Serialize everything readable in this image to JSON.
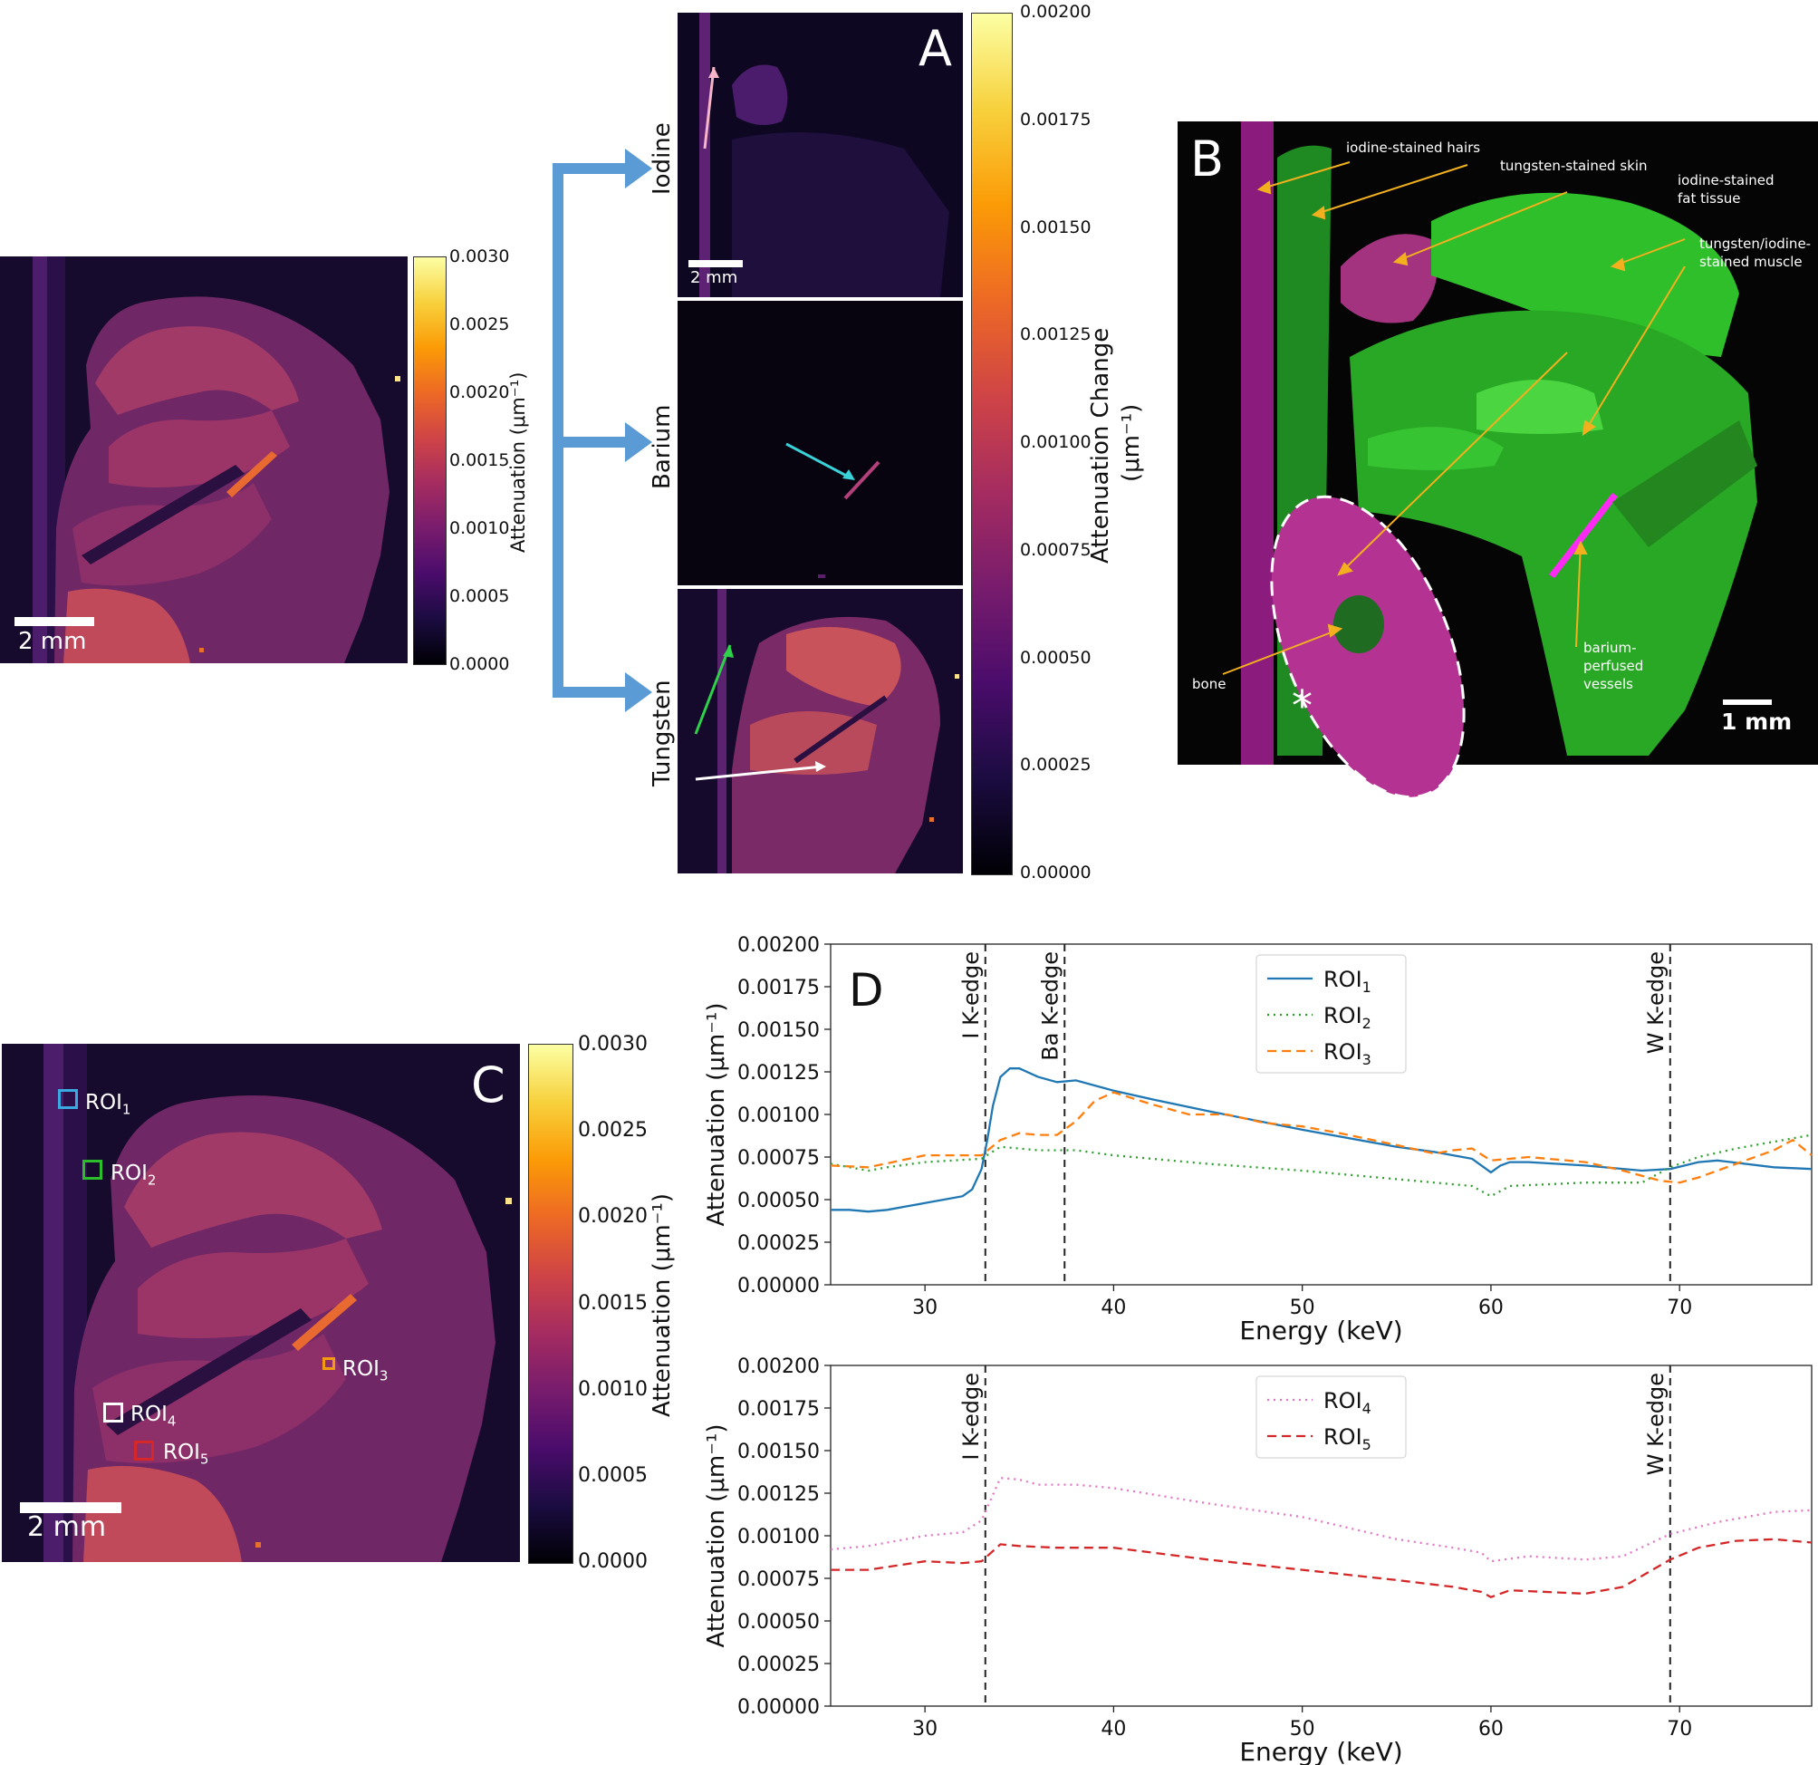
{
  "colors": {
    "inferno_stops": [
      "#000004",
      "#1b0c41",
      "#4a0c6b",
      "#781c6d",
      "#a52c60",
      "#cf4446",
      "#ed6925",
      "#fb9b06",
      "#f7d13d",
      "#fcffa4"
    ],
    "blue_arrow": "#5b9bd5",
    "roi1": "#3aa9e0",
    "roi2": "#2bbd2b",
    "roi3": "#f39c12",
    "roi4": "#ffffff",
    "roi5": "#d62728",
    "series_roi1": "#1f77b4",
    "series_roi2": "#2ca02c",
    "series_roi3": "#ff7f0e",
    "series_roi4": "#e377c2",
    "series_roi5": "#d62728",
    "green_tissue": "#31c32a",
    "magenta_tissue": "#c6239e",
    "annotation_arrow": "#f2b01e"
  },
  "panel_top_left": {
    "scalebar": "2 mm",
    "colorbar_label": "Attenuation (μm⁻¹)",
    "colorbar_ticks": [
      "0.0030",
      "0.0025",
      "0.0020",
      "0.0015",
      "0.0010",
      "0.0005",
      "0.0000"
    ]
  },
  "panel_A": {
    "letter": "A",
    "materials": [
      "Iodine",
      "Barium",
      "Tungsten"
    ],
    "scalebar": "2 mm",
    "colorbar_label": "Attenuation Change",
    "colorbar_label_unit": "(μm⁻¹)",
    "colorbar_ticks": [
      "0.00200",
      "0.00175",
      "0.00150",
      "0.00125",
      "0.00100",
      "0.00075",
      "0.00050",
      "0.00025",
      "0.00000"
    ]
  },
  "panel_B": {
    "letter": "B",
    "scalebar": "1 mm",
    "asterisk": "*",
    "annotations": {
      "hairs": "iodine-stained hairs",
      "skin": "tungsten-stained skin",
      "fat_1": "iodine-stained",
      "fat_2": "fat tissue",
      "muscle_1": "tungsten/iodine-",
      "muscle_2": "stained muscle",
      "bone": "bone",
      "vessels_1": "barium-",
      "vessels_2": "perfused",
      "vessels_3": "vessels"
    }
  },
  "panel_C": {
    "letter": "C",
    "scalebar": "2 mm",
    "colorbar_label": "Attenuation (μm⁻¹)",
    "colorbar_ticks": [
      "0.0030",
      "0.0025",
      "0.0020",
      "0.0015",
      "0.0010",
      "0.0005",
      "0.0000"
    ],
    "rois": [
      {
        "base": "ROI",
        "sub": "1"
      },
      {
        "base": "ROI",
        "sub": "2"
      },
      {
        "base": "ROI",
        "sub": "3"
      },
      {
        "base": "ROI",
        "sub": "4"
      },
      {
        "base": "ROI",
        "sub": "5"
      }
    ]
  },
  "panel_D": {
    "letter": "D",
    "xlabel": "Energy (keV)",
    "ylabel": "Attenuation (μm⁻¹)",
    "edges": {
      "I": "I K-edge",
      "Ba": "Ba K-edge",
      "W": "W K-edge"
    }
  },
  "chart_data": [
    {
      "type": "line",
      "xlabel": "Energy (keV)",
      "ylabel": "Attenuation (μm⁻¹)",
      "xlim": [
        25,
        77
      ],
      "ylim": [
        0,
        0.002
      ],
      "xticks": [
        30,
        40,
        50,
        60,
        70
      ],
      "yticks": [
        0.0,
        0.00025,
        0.0005,
        0.00075,
        0.001,
        0.00125,
        0.0015,
        0.00175,
        0.002
      ],
      "vlines": [
        {
          "x": 33.2,
          "label": "I K-edge"
        },
        {
          "x": 37.4,
          "label": "Ba K-edge"
        },
        {
          "x": 69.5,
          "label": "W K-edge"
        }
      ],
      "legend": "top-center",
      "series": [
        {
          "name": "ROI1",
          "style": "solid",
          "x": [
            25,
            26,
            27,
            28,
            29,
            30,
            31,
            32,
            32.5,
            33,
            33.3,
            33.6,
            34,
            34.5,
            35,
            36,
            37,
            38,
            40,
            42,
            45,
            50,
            55,
            57,
            58,
            59,
            59.5,
            60,
            60.5,
            61,
            62,
            65,
            68,
            69.5,
            71,
            72,
            75,
            77
          ],
          "y": [
            0.00044,
            0.00044,
            0.00043,
            0.00044,
            0.00046,
            0.00048,
            0.0005,
            0.00052,
            0.00056,
            0.00068,
            0.00085,
            0.00105,
            0.00122,
            0.00127,
            0.00127,
            0.00122,
            0.00119,
            0.0012,
            0.00114,
            0.00109,
            0.00102,
            0.00091,
            0.00081,
            0.00078,
            0.00076,
            0.00074,
            0.0007,
            0.00066,
            0.0007,
            0.00072,
            0.00072,
            0.0007,
            0.00067,
            0.00068,
            0.00072,
            0.00073,
            0.00069,
            0.00068
          ]
        },
        {
          "name": "ROI2",
          "style": "dotted",
          "x": [
            25,
            27,
            28,
            30,
            33,
            34,
            36,
            38,
            40,
            45,
            50,
            55,
            59,
            60,
            61,
            65,
            68,
            69.5,
            71,
            73,
            75,
            77
          ],
          "y": [
            0.00071,
            0.00067,
            0.00069,
            0.00072,
            0.00074,
            0.00081,
            0.00079,
            0.00079,
            0.00076,
            0.00071,
            0.00067,
            0.00062,
            0.00058,
            0.00052,
            0.00058,
            0.0006,
            0.0006,
            0.00069,
            0.00075,
            0.0008,
            0.00084,
            0.00088
          ]
        },
        {
          "name": "ROI3",
          "style": "dashed",
          "x": [
            25,
            27,
            30,
            33,
            34,
            35,
            36,
            37,
            38,
            39,
            40,
            42,
            44,
            46,
            48,
            50,
            52,
            55,
            57,
            58,
            59,
            60,
            62,
            65,
            67,
            69,
            70,
            71,
            73,
            75,
            76,
            77
          ],
          "y": [
            0.0007,
            0.00069,
            0.00076,
            0.00076,
            0.00085,
            0.00089,
            0.00088,
            0.00088,
            0.00096,
            0.00108,
            0.00113,
            0.00106,
            0.001,
            0.001,
            0.00095,
            0.00093,
            0.00089,
            0.00082,
            0.00077,
            0.00079,
            0.0008,
            0.00073,
            0.00075,
            0.00072,
            0.00067,
            0.00061,
            0.0006,
            0.00063,
            0.00071,
            0.00079,
            0.00085,
            0.00076
          ]
        }
      ]
    },
    {
      "type": "line",
      "xlabel": "Energy (keV)",
      "ylabel": "Attenuation (μm⁻¹)",
      "xlim": [
        25,
        77
      ],
      "ylim": [
        0,
        0.002
      ],
      "xticks": [
        30,
        40,
        50,
        60,
        70
      ],
      "yticks": [
        0.0,
        0.00025,
        0.0005,
        0.00075,
        0.001,
        0.00125,
        0.0015,
        0.00175,
        0.002
      ],
      "vlines": [
        {
          "x": 33.2,
          "label": "I K-edge"
        },
        {
          "x": 69.5,
          "label": "W K-edge"
        }
      ],
      "legend": "top-center",
      "series": [
        {
          "name": "ROI4",
          "style": "dotted",
          "x": [
            25,
            27,
            30,
            32,
            33,
            34,
            35,
            36,
            37,
            38,
            40,
            45,
            50,
            55,
            58,
            59.5,
            60,
            62,
            65,
            67,
            69.5,
            72,
            75,
            77
          ],
          "y": [
            0.00092,
            0.00094,
            0.001,
            0.00102,
            0.00109,
            0.00134,
            0.00133,
            0.0013,
            0.0013,
            0.0013,
            0.00128,
            0.00119,
            0.00111,
            0.00098,
            0.00093,
            0.0009,
            0.00085,
            0.00088,
            0.00086,
            0.00088,
            0.00101,
            0.00108,
            0.00114,
            0.00115
          ]
        },
        {
          "name": "ROI5",
          "style": "dashed",
          "x": [
            25,
            27,
            30,
            32,
            33,
            34,
            35,
            37,
            40,
            45,
            50,
            55,
            58,
            59.5,
            60,
            61,
            65,
            67,
            69.5,
            71,
            73,
            75,
            77
          ],
          "y": [
            0.0008,
            0.0008,
            0.00085,
            0.00084,
            0.00085,
            0.00095,
            0.00094,
            0.00093,
            0.00093,
            0.00086,
            0.0008,
            0.00074,
            0.0007,
            0.00067,
            0.00064,
            0.00068,
            0.00066,
            0.0007,
            0.00086,
            0.00093,
            0.00097,
            0.00098,
            0.00096
          ]
        }
      ]
    }
  ]
}
